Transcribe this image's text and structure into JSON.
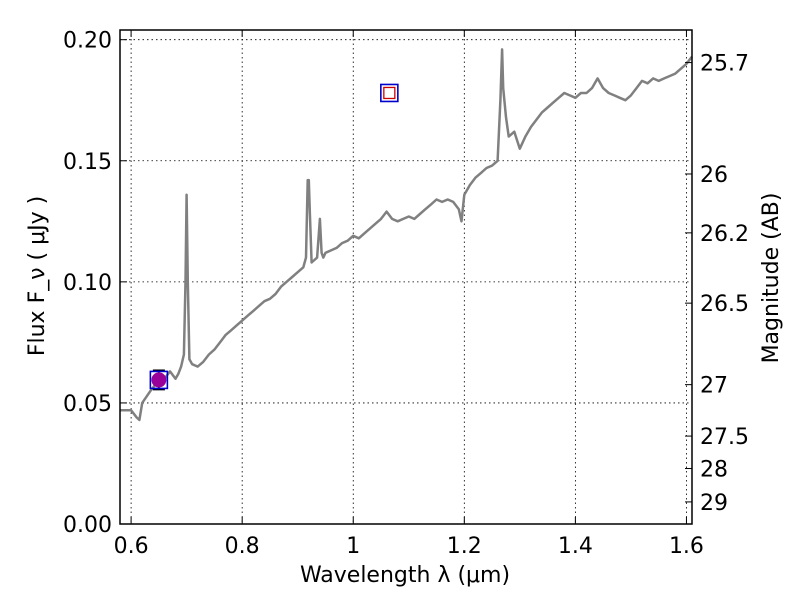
{
  "chart_data": {
    "type": "line",
    "xlabel": "Wavelength  λ (μm)",
    "ylabel": "Flux  F_ν  ( μJy )",
    "ylabel_right": "Magnitude (AB)",
    "xlim": [
      0.58,
      1.61
    ],
    "ylim": [
      0.0,
      0.204
    ],
    "grid": true,
    "x_ticks": [
      0.6,
      0.8,
      1.0,
      1.2,
      1.4,
      1.6
    ],
    "x_tick_labels": [
      "0.6",
      "0.8",
      "1",
      "1.2",
      "1.4",
      "1.6"
    ],
    "y_ticks": [
      0.0,
      0.05,
      0.1,
      0.15,
      0.2
    ],
    "y_tick_labels": [
      "0.00",
      "0.05",
      "0.10",
      "0.15",
      "0.20"
    ],
    "right_ticks": [
      {
        "label": "25.7",
        "mag": 25.7
      },
      {
        "label": "26",
        "mag": 26.0
      },
      {
        "label": "26.2",
        "mag": 26.2
      },
      {
        "label": "26.5",
        "mag": 26.5
      },
      {
        "label": "27",
        "mag": 27.0
      },
      {
        "label": "27.5",
        "mag": 27.5
      },
      {
        "label": "28",
        "mag": 28.0
      },
      {
        "label": "29",
        "mag": 29.0
      }
    ],
    "spectrum": {
      "color": "#808080",
      "x": [
        0.58,
        0.6,
        0.61,
        0.615,
        0.62,
        0.635,
        0.645,
        0.66,
        0.67,
        0.68,
        0.685,
        0.69,
        0.695,
        0.698,
        0.7,
        0.702,
        0.705,
        0.71,
        0.72,
        0.73,
        0.74,
        0.75,
        0.76,
        0.77,
        0.78,
        0.79,
        0.8,
        0.81,
        0.82,
        0.83,
        0.84,
        0.85,
        0.86,
        0.87,
        0.88,
        0.89,
        0.9,
        0.91,
        0.915,
        0.918,
        0.92,
        0.922,
        0.925,
        0.93,
        0.935,
        0.94,
        0.943,
        0.946,
        0.95,
        0.96,
        0.97,
        0.98,
        0.99,
        1.0,
        1.01,
        1.02,
        1.03,
        1.04,
        1.05,
        1.06,
        1.07,
        1.08,
        1.09,
        1.1,
        1.11,
        1.12,
        1.13,
        1.14,
        1.15,
        1.16,
        1.17,
        1.18,
        1.19,
        1.195,
        1.2,
        1.21,
        1.22,
        1.23,
        1.24,
        1.25,
        1.26,
        1.265,
        1.268,
        1.27,
        1.275,
        1.28,
        1.29,
        1.3,
        1.31,
        1.32,
        1.33,
        1.34,
        1.35,
        1.36,
        1.37,
        1.38,
        1.39,
        1.4,
        1.41,
        1.42,
        1.43,
        1.44,
        1.45,
        1.46,
        1.47,
        1.48,
        1.49,
        1.5,
        1.51,
        1.52,
        1.53,
        1.54,
        1.55,
        1.56,
        1.57,
        1.58,
        1.59,
        1.6,
        1.61
      ],
      "y": [
        0.047,
        0.047,
        0.044,
        0.043,
        0.05,
        0.055,
        0.058,
        0.06,
        0.063,
        0.06,
        0.062,
        0.065,
        0.07,
        0.1,
        0.136,
        0.1,
        0.068,
        0.066,
        0.065,
        0.067,
        0.07,
        0.072,
        0.075,
        0.078,
        0.08,
        0.082,
        0.084,
        0.086,
        0.088,
        0.09,
        0.092,
        0.093,
        0.095,
        0.098,
        0.1,
        0.102,
        0.104,
        0.106,
        0.11,
        0.142,
        0.142,
        0.128,
        0.108,
        0.109,
        0.11,
        0.126,
        0.112,
        0.11,
        0.112,
        0.113,
        0.114,
        0.116,
        0.117,
        0.119,
        0.118,
        0.12,
        0.122,
        0.124,
        0.126,
        0.129,
        0.126,
        0.125,
        0.126,
        0.127,
        0.126,
        0.128,
        0.13,
        0.132,
        0.134,
        0.133,
        0.134,
        0.133,
        0.13,
        0.125,
        0.136,
        0.14,
        0.143,
        0.145,
        0.147,
        0.148,
        0.15,
        0.175,
        0.196,
        0.18,
        0.168,
        0.16,
        0.162,
        0.155,
        0.16,
        0.164,
        0.167,
        0.17,
        0.172,
        0.174,
        0.176,
        0.178,
        0.177,
        0.176,
        0.178,
        0.178,
        0.18,
        0.184,
        0.18,
        0.178,
        0.177,
        0.176,
        0.175,
        0.177,
        0.18,
        0.183,
        0.182,
        0.184,
        0.183,
        0.184,
        0.185,
        0.186,
        0.188,
        0.19,
        0.193
      ]
    },
    "points": [
      {
        "x": 0.65,
        "y": 0.0595,
        "yerr": 0.004,
        "marker": "circle",
        "color": "#990099",
        "box_color": "#0000cc"
      },
      {
        "x": 1.065,
        "y": 0.178,
        "marker": "square",
        "color": "#cc0000",
        "box_color": "#0000cc"
      }
    ]
  }
}
